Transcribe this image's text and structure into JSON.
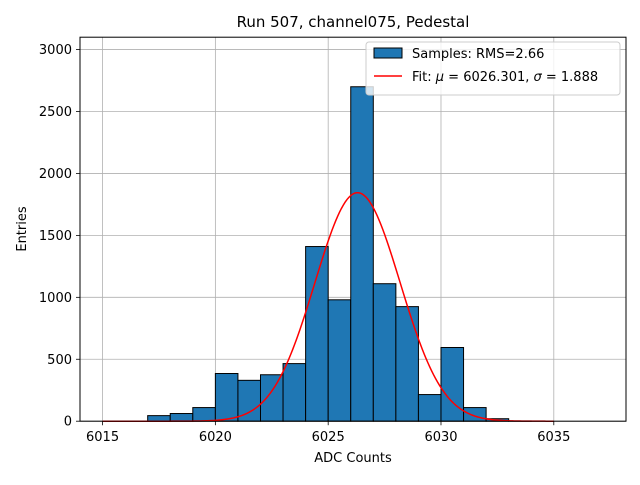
{
  "chart_data": {
    "type": "bar",
    "title": "Run 507, channel075, Pedestal",
    "xlabel": "ADC Counts",
    "ylabel": "Entries",
    "xlim": [
      6014,
      6038.2
    ],
    "ylim": [
      0,
      3100
    ],
    "xticks": [
      6015,
      6020,
      6025,
      6030,
      6035
    ],
    "yticks": [
      0,
      500,
      1000,
      1500,
      2000,
      2500,
      3000
    ],
    "grid": true,
    "legend_position": "top-right",
    "histogram": {
      "name": "Samples: RMS=2.66",
      "color": "#1f77b4",
      "edge_color": "#000000",
      "bins": [
        {
          "x0": 6017,
          "x1": 6018,
          "count": 45
        },
        {
          "x0": 6018,
          "x1": 6019,
          "count": 62
        },
        {
          "x0": 6019,
          "x1": 6020,
          "count": 110
        },
        {
          "x0": 6020,
          "x1": 6021,
          "count": 385
        },
        {
          "x0": 6021,
          "x1": 6022,
          "count": 330
        },
        {
          "x0": 6022,
          "x1": 6023,
          "count": 375
        },
        {
          "x0": 6023,
          "x1": 6024,
          "count": 465
        },
        {
          "x0": 6024,
          "x1": 6025,
          "count": 1410
        },
        {
          "x0": 6025,
          "x1": 6026,
          "count": 980
        },
        {
          "x0": 6026,
          "x1": 6027,
          "count": 2700
        },
        {
          "x0": 6027,
          "x1": 6028,
          "count": 1110
        },
        {
          "x0": 6028,
          "x1": 6029,
          "count": 925
        },
        {
          "x0": 6029,
          "x1": 6030,
          "count": 215
        },
        {
          "x0": 6030,
          "x1": 6031,
          "count": 595
        },
        {
          "x0": 6031,
          "x1": 6032,
          "count": 110
        },
        {
          "x0": 6032,
          "x1": 6033,
          "count": 20
        },
        {
          "x0": 6033,
          "x1": 6034,
          "count": 2
        }
      ]
    },
    "fit": {
      "name": "Fit: μ = 6026.301, σ = 1.888",
      "color": "#ff0000",
      "type": "gaussian",
      "mu": 6026.301,
      "sigma": 1.888,
      "amplitude": 1845,
      "x_range": [
        6015,
        6035
      ]
    },
    "legend": [
      {
        "label": "Samples: RMS=2.66",
        "kind": "patch"
      },
      {
        "label_parts": [
          "Fit: ",
          "μ",
          " = 6026.301, ",
          "σ",
          " = 1.888"
        ],
        "kind": "line"
      }
    ]
  }
}
